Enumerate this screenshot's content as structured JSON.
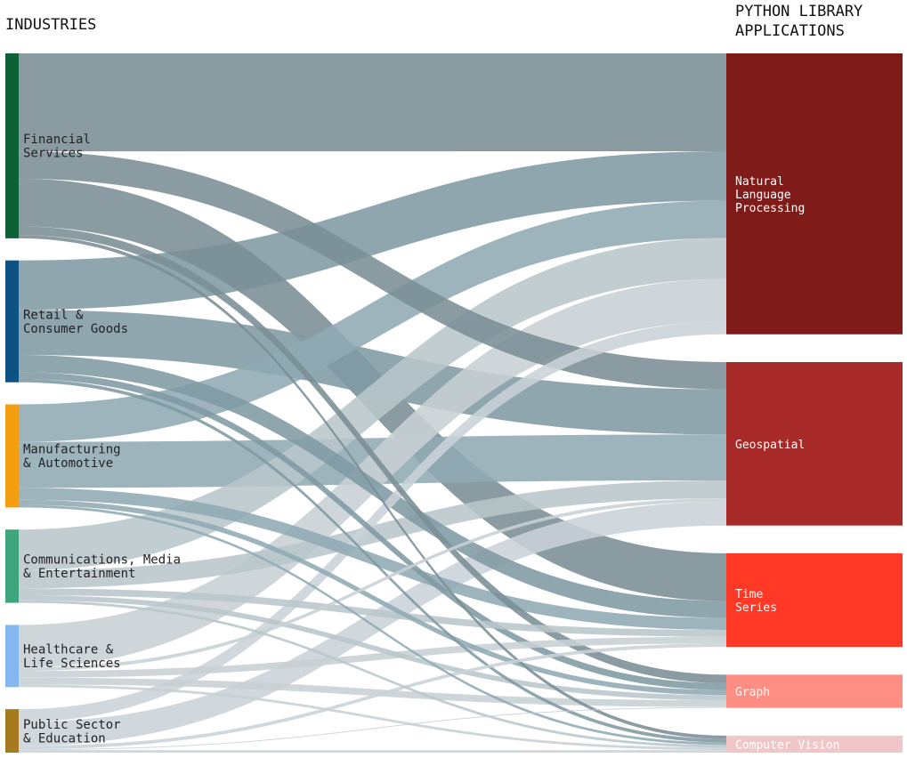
{
  "chart_data": {
    "type": "sankey",
    "title": "",
    "left_header": "INDUSTRIES",
    "right_header": [
      "PYTHON LIBRARY",
      "APPLICATIONS"
    ],
    "value_unit": "relative share (arbitrary units)",
    "sources": [
      {
        "name": "Financial Services",
        "label_lines": [
          "Financial",
          "Services"
        ],
        "color": "#0e6136"
      },
      {
        "name": "Retail & Consumer Goods",
        "label_lines": [
          "Retail &",
          "Consumer Goods"
        ],
        "color": "#0d5283"
      },
      {
        "name": "Manufacturing & Automotive",
        "label_lines": [
          "Manufacturing",
          "& Automotive"
        ],
        "color": "#f59e10"
      },
      {
        "name": "Communications, Media & Entertainment",
        "label_lines": [
          "Communications, Media",
          "& Entertainment"
        ],
        "color": "#3fa57d"
      },
      {
        "name": "Healthcare & Life Sciences",
        "label_lines": [
          "Healthcare &",
          "Life Sciences"
        ],
        "color": "#84b7f0"
      },
      {
        "name": "Public Sector & Education",
        "label_lines": [
          "Public Sector",
          "& Education"
        ],
        "color": "#a67a1f"
      }
    ],
    "targets": [
      {
        "name": "Natural Language Processing",
        "label_lines": [
          "Natural",
          "Language",
          "Processing"
        ],
        "color": "#7f1b18"
      },
      {
        "name": "Geospatial",
        "label_lines": [
          "Geospatial"
        ],
        "color": "#a82a28"
      },
      {
        "name": "Time Series",
        "label_lines": [
          "Time",
          "Series"
        ],
        "color": "#ff3926"
      },
      {
        "name": "Graph",
        "label_lines": [
          "Graph"
        ],
        "color": "#fe8e84"
      },
      {
        "name": "Computer Vision",
        "label_lines": [
          "Computer Vision"
        ],
        "color": "#f0c6c8"
      }
    ],
    "source_link_colors": [
      "#7a8e95",
      "#7f9aa3",
      "#90aab4",
      "#b8c6ca",
      "#c8d0d4",
      "#c9d1d8"
    ],
    "links": [
      {
        "source": "Financial Services",
        "target": "Natural Language Processing",
        "value": 115
      },
      {
        "source": "Financial Services",
        "target": "Geospatial",
        "value": 32
      },
      {
        "source": "Financial Services",
        "target": "Time Series",
        "value": 56
      },
      {
        "source": "Financial Services",
        "target": "Graph",
        "value": 10
      },
      {
        "source": "Financial Services",
        "target": "Computer Vision",
        "value": 4
      },
      {
        "source": "Retail & Consumer Goods",
        "target": "Natural Language Processing",
        "value": 58
      },
      {
        "source": "Retail & Consumer Goods",
        "target": "Geospatial",
        "value": 53
      },
      {
        "source": "Retail & Consumer Goods",
        "target": "Time Series",
        "value": 20
      },
      {
        "source": "Retail & Consumer Goods",
        "target": "Graph",
        "value": 8
      },
      {
        "source": "Retail & Consumer Goods",
        "target": "Computer Vision",
        "value": 4
      },
      {
        "source": "Manufacturing & Automotive",
        "target": "Natural Language Processing",
        "value": 44
      },
      {
        "source": "Manufacturing & Automotive",
        "target": "Geospatial",
        "value": 54
      },
      {
        "source": "Manufacturing & Automotive",
        "target": "Time Series",
        "value": 14
      },
      {
        "source": "Manufacturing & Automotive",
        "target": "Graph",
        "value": 6
      },
      {
        "source": "Manufacturing & Automotive",
        "target": "Computer Vision",
        "value": 3
      },
      {
        "source": "Communications, Media & Entertainment",
        "target": "Natural Language Processing",
        "value": 48
      },
      {
        "source": "Communications, Media & Entertainment",
        "target": "Geospatial",
        "value": 21
      },
      {
        "source": "Communications, Media & Entertainment",
        "target": "Time Series",
        "value": 8
      },
      {
        "source": "Communications, Media & Entertainment",
        "target": "Graph",
        "value": 6
      },
      {
        "source": "Communications, Media & Entertainment",
        "target": "Computer Vision",
        "value": 3
      },
      {
        "source": "Healthcare & Life Sciences",
        "target": "Natural Language Processing",
        "value": 50
      },
      {
        "source": "Healthcare & Life Sciences",
        "target": "Geospatial",
        "value": 4
      },
      {
        "source": "Healthcare & Life Sciences",
        "target": "Time Series",
        "value": 8
      },
      {
        "source": "Healthcare & Life Sciences",
        "target": "Graph",
        "value": 8
      },
      {
        "source": "Healthcare & Life Sciences",
        "target": "Computer Vision",
        "value": 3
      },
      {
        "source": "Public Sector & Education",
        "target": "Natural Language Processing",
        "value": 15
      },
      {
        "source": "Public Sector & Education",
        "target": "Geospatial",
        "value": 28
      },
      {
        "source": "Public Sector & Education",
        "target": "Time Series",
        "value": 4
      },
      {
        "source": "Public Sector & Education",
        "target": "Graph",
        "value": 1
      },
      {
        "source": "Public Sector & Education",
        "target": "Computer Vision",
        "value": 3
      }
    ]
  }
}
